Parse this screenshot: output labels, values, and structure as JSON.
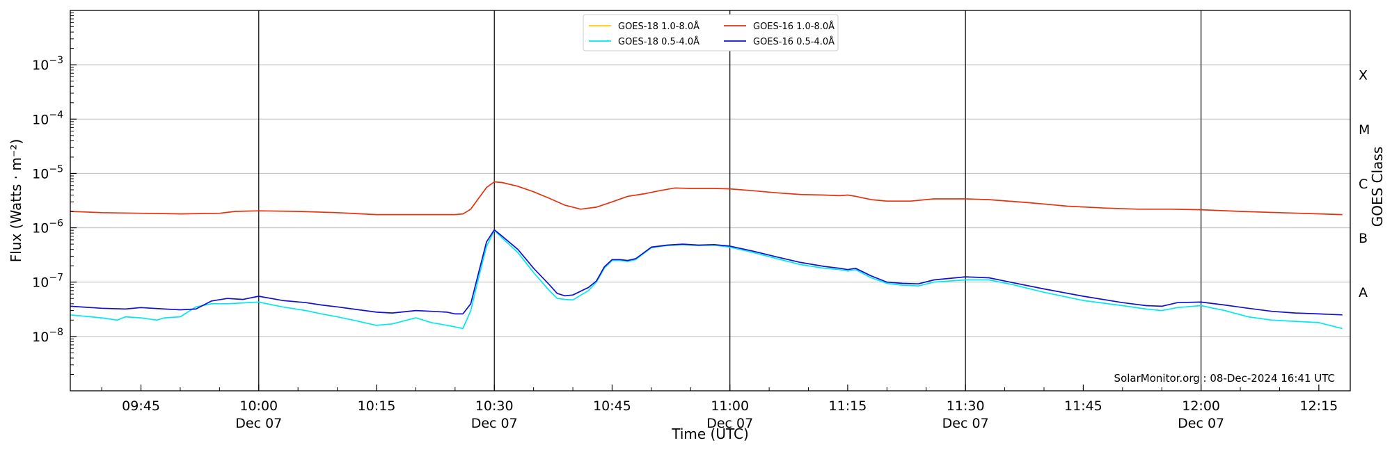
{
  "chart_data": {
    "type": "line",
    "xlabel": "Time (UTC)",
    "ylabel": "Flux (Watts · m⁻²)",
    "y2label": "GOES Class",
    "yscale": "log",
    "ylim": [
      1e-09,
      0.01
    ],
    "xlim": [
      "09:36",
      "12:19"
    ],
    "grid": {
      "horizontal": true,
      "vertical_major": true
    },
    "legend_position": "top-center",
    "credit": "SolarMonitor.org : 08-Dec-2024 16:41 UTC",
    "yticks": [
      {
        "value": 1e-08,
        "base": "10",
        "exp": "−8"
      },
      {
        "value": 1e-07,
        "base": "10",
        "exp": "−7"
      },
      {
        "value": 1e-06,
        "base": "10",
        "exp": "−6"
      },
      {
        "value": 1e-05,
        "base": "10",
        "exp": "−5"
      },
      {
        "value": 0.0001,
        "base": "10",
        "exp": "−4"
      },
      {
        "value": 0.001,
        "base": "10",
        "exp": "−3"
      }
    ],
    "xticks": [
      {
        "time": "09:45",
        "label": "09:45",
        "sub": "",
        "major": false
      },
      {
        "time": "10:00",
        "label": "10:00",
        "sub": "Dec 07",
        "major": true
      },
      {
        "time": "10:15",
        "label": "10:15",
        "sub": "",
        "major": false
      },
      {
        "time": "10:30",
        "label": "10:30",
        "sub": "Dec 07",
        "major": true
      },
      {
        "time": "10:45",
        "label": "10:45",
        "sub": "",
        "major": false
      },
      {
        "time": "11:00",
        "label": "11:00",
        "sub": "Dec 07",
        "major": true
      },
      {
        "time": "11:15",
        "label": "11:15",
        "sub": "",
        "major": false
      },
      {
        "time": "11:30",
        "label": "11:30",
        "sub": "Dec 07",
        "major": true
      },
      {
        "time": "11:45",
        "label": "11:45",
        "sub": "",
        "major": false
      },
      {
        "time": "12:00",
        "label": "12:00",
        "sub": "Dec 07",
        "major": true
      },
      {
        "time": "12:15",
        "label": "12:15",
        "sub": "",
        "major": false
      }
    ],
    "classes": [
      {
        "label": "X",
        "value": 0.0001
      },
      {
        "label": "M",
        "value": 1e-05
      },
      {
        "label": "C",
        "value": 1e-06
      },
      {
        "label": "B",
        "value": 1e-07
      },
      {
        "label": "A",
        "value": 1e-08
      }
    ],
    "series": [
      {
        "name": "GOES-18 1.0-8.0Å",
        "color": "#f5d000",
        "x": [],
        "y": []
      },
      {
        "name": "GOES-16 1.0-8.0Å",
        "color": "#e8300c",
        "x": [
          "09:36",
          "09:40",
          "09:45",
          "09:50",
          "09:55",
          "09:57",
          "10:00",
          "10:05",
          "10:10",
          "10:15",
          "10:20",
          "10:25",
          "10:26",
          "10:27",
          "10:28",
          "10:29",
          "10:30",
          "10:31",
          "10:33",
          "10:35",
          "10:37",
          "10:39",
          "10:41",
          "10:43",
          "10:45",
          "10:47",
          "10:49",
          "10:51",
          "10:53",
          "10:55",
          "10:58",
          "11:00",
          "11:03",
          "11:06",
          "11:09",
          "11:12",
          "11:14",
          "11:15",
          "11:16",
          "11:18",
          "11:20",
          "11:23",
          "11:26",
          "11:30",
          "11:33",
          "11:38",
          "11:43",
          "11:48",
          "11:52",
          "11:56",
          "12:00",
          "12:05",
          "12:10",
          "12:18"
        ],
        "y": [
          2e-06,
          1.9e-06,
          1.85e-06,
          1.8e-06,
          1.85e-06,
          2e-06,
          2.05e-06,
          2e-06,
          1.9e-06,
          1.75e-06,
          1.75e-06,
          1.75e-06,
          1.8e-06,
          2.2e-06,
          3.5e-06,
          5.5e-06,
          7e-06,
          6.8e-06,
          5.8e-06,
          4.6e-06,
          3.5e-06,
          2.6e-06,
          2.2e-06,
          2.4e-06,
          3e-06,
          3.8e-06,
          4.2e-06,
          4.8e-06,
          5.4e-06,
          5.3e-06,
          5.3e-06,
          5.2e-06,
          4.8e-06,
          4.4e-06,
          4.1e-06,
          4e-06,
          3.9e-06,
          4e-06,
          3.8e-06,
          3.3e-06,
          3.1e-06,
          3.1e-06,
          3.4e-06,
          3.4e-06,
          3.3e-06,
          2.9e-06,
          2.5e-06,
          2.3e-06,
          2.2e-06,
          2.2e-06,
          2.15e-06,
          2e-06,
          1.9e-06,
          1.75e-06
        ]
      },
      {
        "name": "GOES-18 0.5-4.0Å",
        "color": "#00e8f0",
        "x": [
          "09:36",
          "09:40",
          "09:42",
          "09:43",
          "09:45",
          "09:47",
          "09:48",
          "09:50",
          "09:52",
          "09:54",
          "09:56",
          "10:00",
          "10:03",
          "10:06",
          "10:08",
          "10:10",
          "10:12",
          "10:15",
          "10:17",
          "10:20",
          "10:22",
          "10:24",
          "10:25",
          "10:26",
          "10:27",
          "10:28",
          "10:29",
          "10:30",
          "10:31",
          "10:33",
          "10:35",
          "10:37",
          "10:38",
          "10:39",
          "10:40",
          "10:42",
          "10:43",
          "10:44",
          "10:45",
          "10:46",
          "10:47",
          "10:48",
          "10:50",
          "10:52",
          "10:54",
          "10:56",
          "10:58",
          "11:00",
          "11:03",
          "11:06",
          "11:09",
          "11:12",
          "11:14",
          "11:15",
          "11:16",
          "11:18",
          "11:20",
          "11:22",
          "11:24",
          "11:26",
          "11:30",
          "11:33",
          "11:36",
          "11:40",
          "11:45",
          "11:50",
          "11:53",
          "11:55",
          "11:57",
          "12:00",
          "12:03",
          "12:06",
          "12:09",
          "12:12",
          "12:15",
          "12:18"
        ],
        "y": [
          2.5e-08,
          2.2e-08,
          2e-08,
          2.3e-08,
          2.2e-08,
          2e-08,
          2.2e-08,
          2.3e-08,
          3.5e-08,
          4e-08,
          4e-08,
          4.3e-08,
          3.5e-08,
          3e-08,
          2.6e-08,
          2.3e-08,
          2e-08,
          1.6e-08,
          1.7e-08,
          2.2e-08,
          1.8e-08,
          1.6e-08,
          1.5e-08,
          1.4e-08,
          3e-08,
          1.2e-07,
          4.5e-07,
          9e-07,
          6.5e-07,
          3.5e-07,
          1.5e-07,
          7e-08,
          5e-08,
          4.8e-08,
          4.7e-08,
          7e-08,
          1e-07,
          1.8e-07,
          2.5e-07,
          2.5e-07,
          2.4e-07,
          2.6e-07,
          4.3e-07,
          4.7e-07,
          4.9e-07,
          4.7e-07,
          4.8e-07,
          4.4e-07,
          3.5e-07,
          2.7e-07,
          2.1e-07,
          1.8e-07,
          1.7e-07,
          1.6e-07,
          1.7e-07,
          1.2e-07,
          9.5e-08,
          8.8e-08,
          8.5e-08,
          1e-07,
          1.1e-07,
          1.1e-07,
          9e-08,
          6.5e-08,
          4.6e-08,
          3.7e-08,
          3.2e-08,
          3e-08,
          3.4e-08,
          3.7e-08,
          3e-08,
          2.3e-08,
          2e-08,
          1.9e-08,
          1.8e-08,
          1.4e-08
        ]
      },
      {
        "name": "GOES-16 0.5-4.0Å",
        "color": "#1010d0",
        "x": [
          "09:36",
          "09:40",
          "09:43",
          "09:45",
          "09:48",
          "09:50",
          "09:52",
          "09:54",
          "09:56",
          "09:58",
          "10:00",
          "10:03",
          "10:06",
          "10:08",
          "10:10",
          "10:12",
          "10:15",
          "10:17",
          "10:20",
          "10:22",
          "10:24",
          "10:25",
          "10:26",
          "10:27",
          "10:28",
          "10:29",
          "10:30",
          "10:31",
          "10:33",
          "10:35",
          "10:37",
          "10:38",
          "10:39",
          "10:40",
          "10:42",
          "10:43",
          "10:44",
          "10:45",
          "10:46",
          "10:47",
          "10:48",
          "10:50",
          "10:52",
          "10:54",
          "10:56",
          "10:58",
          "11:00",
          "11:03",
          "11:06",
          "11:09",
          "11:12",
          "11:14",
          "11:15",
          "11:16",
          "11:18",
          "11:20",
          "11:22",
          "11:24",
          "11:26",
          "11:30",
          "11:33",
          "11:36",
          "11:40",
          "11:45",
          "11:50",
          "11:53",
          "11:55",
          "11:57",
          "12:00",
          "12:03",
          "12:06",
          "12:09",
          "12:12",
          "12:15",
          "12:18"
        ],
        "y": [
          3.6e-08,
          3.3e-08,
          3.2e-08,
          3.4e-08,
          3.2e-08,
          3.1e-08,
          3.2e-08,
          4.5e-08,
          5e-08,
          4.8e-08,
          5.5e-08,
          4.6e-08,
          4.2e-08,
          3.8e-08,
          3.5e-08,
          3.2e-08,
          2.8e-08,
          2.7e-08,
          3e-08,
          2.9e-08,
          2.8e-08,
          2.6e-08,
          2.6e-08,
          4e-08,
          1.5e-07,
          5.5e-07,
          9.2e-07,
          7e-07,
          4e-07,
          1.8e-07,
          9e-08,
          6.2e-08,
          5.6e-08,
          5.8e-08,
          8e-08,
          1.05e-07,
          1.9e-07,
          2.6e-07,
          2.6e-07,
          2.5e-07,
          2.7e-07,
          4.4e-07,
          4.8e-07,
          5e-07,
          4.8e-07,
          4.9e-07,
          4.6e-07,
          3.7e-07,
          2.9e-07,
          2.3e-07,
          1.95e-07,
          1.8e-07,
          1.7e-07,
          1.8e-07,
          1.3e-07,
          1e-07,
          9.5e-08,
          9.3e-08,
          1.1e-07,
          1.25e-07,
          1.2e-07,
          9.8e-08,
          7.5e-08,
          5.5e-08,
          4.2e-08,
          3.7e-08,
          3.6e-08,
          4.2e-08,
          4.3e-08,
          3.8e-08,
          3.3e-08,
          2.9e-08,
          2.7e-08,
          2.6e-08,
          2.5e-08
        ]
      }
    ]
  }
}
